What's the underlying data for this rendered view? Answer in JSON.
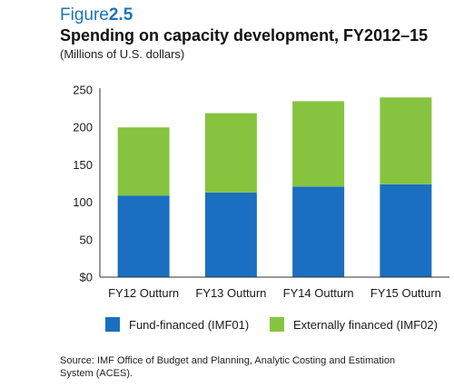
{
  "figure": {
    "prefix": "Figure",
    "number": "2.5",
    "title": "Spending on capacity development, FY2012–15",
    "subtitle": "(Millions of U.S. dollars)",
    "source": "Source: IMF Office of Budget and Planning, Analytic Costing and Estimation System (ACES)."
  },
  "colors": {
    "accent": "#1f73b7",
    "fund_financed": "#1a6fc0",
    "externally_financed": "#86c440",
    "axis": "#333333"
  },
  "chart_data": {
    "type": "bar",
    "stacked": true,
    "title": "Spending on capacity development, FY2012–15",
    "ylabel": "",
    "xlabel": "",
    "categories": [
      "FY12 Outturn",
      "FY13 Outturn",
      "FY14 Outturn",
      "FY15 Outturn"
    ],
    "series": [
      {
        "name": "Fund-financed (IMF01)",
        "values": [
          109,
          113,
          121,
          124
        ]
      },
      {
        "name": "Externally financed (IMF02)",
        "values": [
          91,
          106,
          114,
          116
        ]
      }
    ],
    "ylim": [
      0,
      250
    ],
    "yticks": [
      0,
      50,
      100,
      150,
      200,
      250
    ],
    "ytick_labels": [
      "$0",
      "50",
      "100",
      "150",
      "200",
      "250"
    ],
    "grid": false,
    "legend_position": "bottom"
  }
}
